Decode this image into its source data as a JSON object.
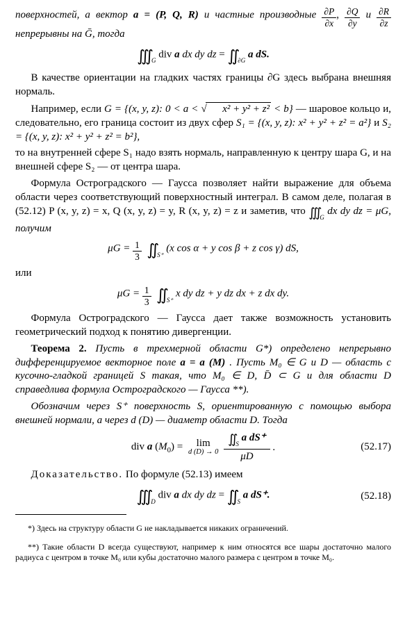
{
  "colors": {
    "text": "#000000",
    "background": "#ffffff"
  },
  "typography": {
    "body_fontsize_pt": 11,
    "footnote_fontsize_pt": 9,
    "font_family": "Times New Roman, serif"
  },
  "p1_a": "поверхностей, а вектор ",
  "p1_b": " и частные производные ",
  "p1_c": " непрерывны на ",
  "p1_d": ", тогда",
  "p1_vec": "a = (P, Q, R)",
  "p1_d1n": "∂P",
  "p1_d1d": "∂x",
  "p1_d2n": "∂Q",
  "p1_d2d": "∂y",
  "p1_d3n": "∂R",
  "p1_d3d": "∂z",
  "p1_sep": ", ",
  "p1_and": " и ",
  "p1_Gbar": "Ḡ",
  "f1_lhs_int": "∭",
  "f1_lhs_sub": "G",
  "f1_lhs_body": "div a dx dy dz = ",
  "f1_rhs_int": "∬",
  "f1_rhs_sub": "∂G",
  "f1_rhs_body": "a dS.",
  "p2": "В качестве ориентации на гладких частях границы ∂G здесь выбрана внешняя нормаль.",
  "p3_a": "Например, если ",
  "p3_b": " — шаровое кольцо и, следовательно, его граница состоит из двух сфер ",
  "p3_set": "G = {(x, y, z): 0 < a < ",
  "p3_sqrt": "x² + y² + z²",
  "p3_set2": " < b}",
  "p3_s1": "S₁ = {(x, y, z): x² + y² + z² = a²}",
  "p3_and2": "  и  ",
  "p3_s2": "S₂ = {(x, y, z): x² + y² + z² = b²},",
  "p4": "то на внутренней сфере S₁ надо взять нормаль, направленную к центру шара G, и на внешней сфере S₂ — от центра шара.",
  "p5_a": "Формула Остроградского — Гаусса позволяет найти выражение для объема области через соответствующий поверхностный интеграл. В самом деле, полагая в (52.12) P (x, y, z) = x, Q (x, y, z) = y, R (x, y, z) = z и заметив, что ",
  "p5_b": " dx dy dz = μG, получим",
  "p5_int": "∭",
  "p5_sub": "G",
  "f2_lhs": "μG = ",
  "f2_fr_n": "1",
  "f2_fr_d": "3",
  "f2_int": "∬",
  "f2_sub": "S⁺",
  "f2_body": " (x cos α + y cos β + z cos γ) dS,",
  "p6": "или",
  "f3_lhs": "μG = ",
  "f3_fr_n": "1",
  "f3_fr_d": "3",
  "f3_int": "∬",
  "f3_sub": "S⁺",
  "f3_body": " x dy dz + y dz dx + z dx dy.",
  "p7": "Формула Остроградского — Гаусса дает также возможность установить геометрический подход к понятию дивергенции.",
  "p8_lbl": "Теорема 2.",
  "p8_a": " Пусть в трехмерной области G*) определено непрерывно дифференцируемое векторное поле ",
  "p8_b": ". Пусть M₀ ∈ G и D — область с кусочно-гладкой границей S такая, что M₀ ∈ D, D̄ ⊂ G и для области D справедлива формула Остроградского — Гаусса **).",
  "p8_vec": "a = a (M)",
  "p9": "Обозначим через S⁺ поверхность S, ориентированную с помощью выбора внешней нормали, а через d (D) — диаметр области D. Тогда",
  "f4_lhs": "div a (M₀) = ",
  "f4_lim": "lim",
  "f4_lim_sub": "d (D) → 0",
  "f4_num_int": "∬",
  "f4_num_sub": "S",
  "f4_num_body": " a dS⁺",
  "f4_den": "μD",
  "f4_dot": " .",
  "eq17": "(52.17)",
  "p10_a": "Доказательство.",
  "p10_b": " По формуле (52.13) имеем",
  "f5_int": "∭",
  "f5_sub": "D",
  "f5_body": " div a dx dy dz = ",
  "f5_int2": "∬",
  "f5_sub2": "S",
  "f5_body2": " a dS⁺.",
  "eq18": "(52.18)",
  "fn1": "*) Здесь на структуру области G не накладывается никаких ограничений.",
  "fn2": "**) Такие области D всегда существуют, например к ним относятся все шары достаточно малого радиуса с центром в точке M₀ или кубы достаточно малого размера с центром в точке M₀."
}
